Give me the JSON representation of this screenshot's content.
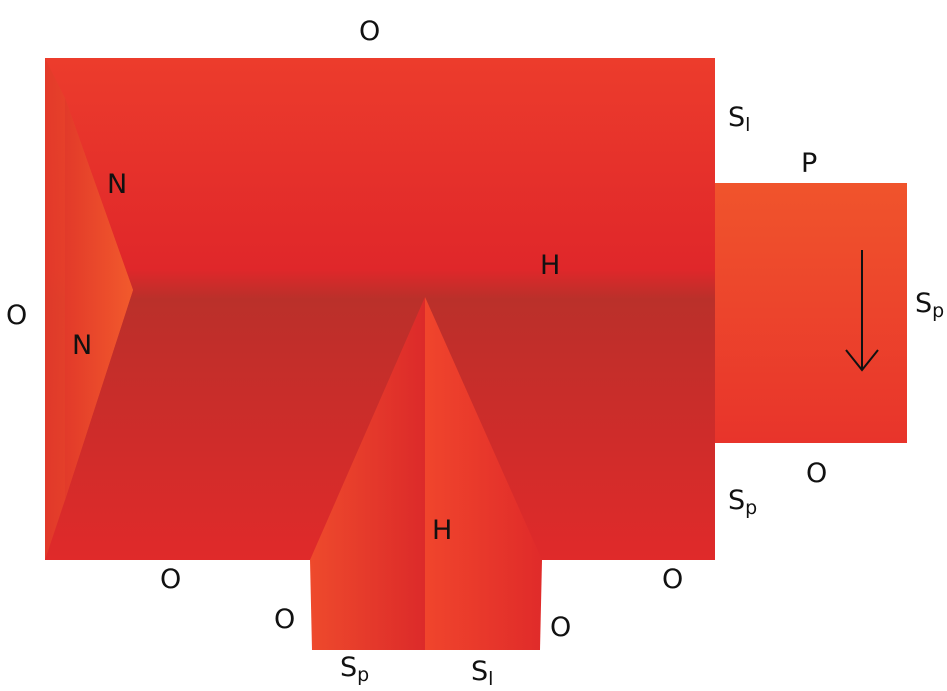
{
  "labels": {
    "top_o": "O",
    "left_o": "O",
    "top_right_s": "S",
    "top_right_s_sub": "l",
    "porch_p": "P",
    "right_s": "S",
    "right_s_sub": "p",
    "porch_bottom_o": "O",
    "right_lower_s": "S",
    "right_lower_s_sub": "p",
    "north_n_upper": "N",
    "north_n_lower": "N",
    "main_h": "H",
    "gable_h": "H",
    "bottom_left_o": "O",
    "bottom_right_o": "O",
    "gable_left_o": "O",
    "gable_right_o": "O",
    "gable_bottom_left_s": "S",
    "gable_bottom_left_s_sub": "p",
    "gable_bottom_right_s": "S",
    "gable_bottom_right_s_sub": "l"
  },
  "colors": {
    "roof_light": "#eb3b2b",
    "roof_mid": "#e02a2a",
    "roof_dark": "#b9302a",
    "hip_orange": "#f0502c",
    "porch": "#ee4a2c",
    "arrow": "#111111"
  }
}
